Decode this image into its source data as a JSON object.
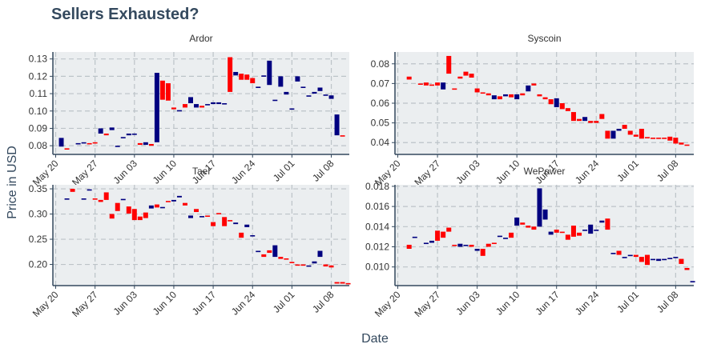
{
  "title": "Sellers Exhausted?",
  "xlabel": "Date",
  "ylabel": "Price in USD",
  "colors": {
    "up": "#000080",
    "down": "#ff0000",
    "panel_bg": "#ebeef0",
    "grid": "#bcc3c8",
    "axis": "#34495e"
  },
  "x_tick_labels": [
    "May 20",
    "May 27",
    "Jun 03",
    "Jun 10",
    "Jun 17",
    "Jun 24",
    "Jul 01",
    "Jul 08"
  ],
  "chart_data": [
    {
      "type": "candlestick",
      "name": "Ardor",
      "ylim": [
        0.075,
        0.134
      ],
      "y_ticks": [
        0.08,
        0.09,
        0.1,
        0.11,
        0.12,
        0.13
      ],
      "y_tick_labels": [
        "0.08",
        "0.09",
        "0.10",
        "0.11",
        "0.12",
        "0.13"
      ],
      "x_tick_days": [
        0,
        7,
        14,
        21,
        28,
        35,
        42,
        49
      ],
      "xlim": [
        -0.5,
        52.2
      ],
      "day": [
        1,
        2,
        4,
        5,
        6,
        7,
        8,
        9,
        10,
        11,
        12,
        13,
        14,
        15,
        16,
        17,
        18,
        19,
        20,
        21,
        22,
        23,
        24,
        25,
        26,
        27,
        28,
        29,
        30,
        31,
        32,
        33,
        34,
        35,
        36,
        37,
        38,
        39,
        40,
        41,
        42,
        43,
        44,
        45,
        46,
        47,
        48,
        49,
        50,
        51
      ],
      "open": [
        0.0795,
        0.0785,
        0.0815,
        0.0815,
        0.0815,
        0.082,
        0.087,
        0.087,
        0.089,
        0.0795,
        0.0845,
        0.086,
        0.087,
        0.0815,
        0.0805,
        0.081,
        0.082,
        0.1175,
        0.116,
        0.102,
        0.1,
        0.104,
        0.1045,
        0.102,
        0.103,
        0.1035,
        0.104,
        0.104,
        0.104,
        0.131,
        0.1205,
        0.1215,
        0.121,
        0.119,
        0.114,
        0.1205,
        0.115,
        0.1065,
        0.114,
        0.1095,
        0.101,
        0.117,
        0.114,
        0.109,
        0.11,
        0.1115,
        0.1095,
        0.107,
        0.086,
        0.086
      ],
      "close": [
        0.0845,
        0.078,
        0.0815,
        0.082,
        0.081,
        0.0815,
        0.09,
        0.086,
        0.0905,
        0.08,
        0.085,
        0.087,
        0.087,
        0.0805,
        0.082,
        0.08,
        0.122,
        0.1065,
        0.106,
        0.101,
        0.1005,
        0.102,
        0.108,
        0.104,
        0.102,
        0.104,
        0.105,
        0.105,
        0.1045,
        0.111,
        0.1225,
        0.118,
        0.118,
        0.116,
        0.114,
        0.1205,
        0.129,
        0.1065,
        0.12,
        0.111,
        0.1015,
        0.12,
        0.114,
        0.109,
        0.111,
        0.1135,
        0.1095,
        0.109,
        0.098,
        0.0855
      ]
    },
    {
      "type": "candlestick",
      "name": "Syscoin",
      "ylim": [
        0.034,
        0.086
      ],
      "y_ticks": [
        0.04,
        0.05,
        0.06,
        0.07,
        0.08
      ],
      "y_tick_labels": [
        "0.04",
        "0.05",
        "0.06",
        "0.07",
        "0.08"
      ],
      "x_tick_days": [
        0,
        7,
        14,
        21,
        28,
        35,
        42,
        49
      ],
      "xlim": [
        -0.5,
        52.2
      ],
      "day": [
        2,
        4,
        5,
        6,
        7,
        8,
        9,
        10,
        11,
        12,
        13,
        14,
        15,
        16,
        17,
        18,
        19,
        20,
        21,
        22,
        23,
        24,
        25,
        26,
        27,
        28,
        29,
        30,
        31,
        32,
        33,
        34,
        35,
        36,
        37,
        38,
        39,
        40,
        41,
        42,
        43,
        44,
        45,
        46,
        47,
        48,
        49,
        50,
        51
      ],
      "open": [
        0.0735,
        0.07,
        0.0705,
        0.0695,
        0.0705,
        0.067,
        0.084,
        0.0675,
        0.0735,
        0.076,
        0.075,
        0.0675,
        0.0655,
        0.065,
        0.062,
        0.0635,
        0.0635,
        0.0645,
        0.062,
        0.065,
        0.066,
        0.07,
        0.0645,
        0.063,
        0.062,
        0.058,
        0.06,
        0.0575,
        0.0555,
        0.052,
        0.051,
        0.051,
        0.051,
        0.0545,
        0.046,
        0.042,
        0.046,
        0.049,
        0.046,
        0.044,
        0.047,
        0.0428,
        0.0425,
        0.0425,
        0.0425,
        0.043,
        0.0425,
        0.04,
        0.039
      ],
      "close": [
        0.072,
        0.0695,
        0.069,
        0.069,
        0.069,
        0.0705,
        0.075,
        0.067,
        0.0725,
        0.074,
        0.073,
        0.0655,
        0.065,
        0.064,
        0.064,
        0.062,
        0.0645,
        0.063,
        0.0645,
        0.064,
        0.069,
        0.069,
        0.0635,
        0.062,
        0.0595,
        0.0625,
        0.057,
        0.056,
        0.051,
        0.051,
        0.053,
        0.05,
        0.05,
        0.052,
        0.042,
        0.046,
        0.047,
        0.047,
        0.044,
        0.043,
        0.042,
        0.0422,
        0.042,
        0.042,
        0.042,
        0.041,
        0.0395,
        0.039,
        0.0388
      ]
    },
    {
      "type": "candlestick",
      "name": "Tael",
      "ylim": [
        0.158,
        0.358
      ],
      "y_ticks": [
        0.2,
        0.25,
        0.3,
        0.35
      ],
      "y_tick_labels": [
        "0.20",
        "0.25",
        "0.30",
        "0.35"
      ],
      "x_tick_days": [
        0,
        7,
        14,
        21,
        28,
        35,
        42,
        49
      ],
      "xlim": [
        -0.5,
        52.2
      ],
      "day": [
        2,
        3,
        5,
        6,
        7,
        8,
        9,
        10,
        11,
        12,
        13,
        14,
        15,
        16,
        17,
        18,
        19,
        20,
        21,
        22,
        23,
        24,
        25,
        26,
        27,
        28,
        29,
        30,
        31,
        32,
        33,
        34,
        35,
        36,
        37,
        38,
        39,
        40,
        41,
        42,
        43,
        44,
        45,
        46,
        47,
        48,
        49,
        50,
        51,
        52
      ],
      "open": [
        0.33,
        0.35,
        0.33,
        0.347,
        0.331,
        0.328,
        0.343,
        0.3,
        0.322,
        0.329,
        0.315,
        0.31,
        0.295,
        0.303,
        0.311,
        0.319,
        0.312,
        0.326,
        0.325,
        0.333,
        0.322,
        0.292,
        0.31,
        0.295,
        0.297,
        0.284,
        0.302,
        0.294,
        0.288,
        0.28,
        0.263,
        0.274,
        0.258,
        0.225,
        0.22,
        0.228,
        0.215,
        0.215,
        0.212,
        0.205,
        0.2,
        0.2,
        0.197,
        0.202,
        0.215,
        0.2,
        0.198,
        0.165,
        0.165,
        0.163
      ],
      "close": [
        0.331,
        0.344,
        0.331,
        0.349,
        0.33,
        0.324,
        0.328,
        0.291,
        0.306,
        0.33,
        0.301,
        0.288,
        0.288,
        0.292,
        0.317,
        0.313,
        0.314,
        0.324,
        0.328,
        0.336,
        0.317,
        0.297,
        0.304,
        0.296,
        0.296,
        0.276,
        0.3,
        0.276,
        0.287,
        0.283,
        0.253,
        0.279,
        0.258,
        0.227,
        0.215,
        0.223,
        0.238,
        0.211,
        0.21,
        0.203,
        0.198,
        0.198,
        0.198,
        0.206,
        0.227,
        0.196,
        0.194,
        0.162,
        0.162,
        0.162
      ]
    },
    {
      "type": "candlestick",
      "name": "WePower",
      "ylim": [
        0.00815,
        0.01815
      ],
      "y_ticks": [
        0.01,
        0.012,
        0.014,
        0.016,
        0.018
      ],
      "y_tick_labels": [
        "0.010",
        "0.012",
        "0.014",
        "0.016",
        "0.018"
      ],
      "x_tick_days": [
        0,
        7,
        14,
        21,
        28,
        35,
        42,
        49
      ],
      "xlim": [
        -0.5,
        52.2
      ],
      "day": [
        2,
        3,
        5,
        6,
        7,
        8,
        9,
        10,
        11,
        12,
        13,
        14,
        15,
        16,
        17,
        18,
        19,
        20,
        21,
        22,
        23,
        24,
        25,
        26,
        27,
        28,
        29,
        30,
        31,
        32,
        33,
        34,
        35,
        36,
        37,
        38,
        39,
        40,
        41,
        42,
        43,
        44,
        45,
        46,
        47,
        48,
        49,
        50,
        51,
        52
      ],
      "open": [
        0.0122,
        0.013,
        0.0123,
        0.0124,
        0.0136,
        0.0135,
        0.0139,
        0.0122,
        0.012,
        0.0121,
        0.0122,
        0.0116,
        0.0118,
        0.0123,
        0.0124,
        0.0131,
        0.0129,
        0.0134,
        0.0141,
        0.0144,
        0.0141,
        0.014,
        0.014,
        0.0147,
        0.0132,
        0.0137,
        0.0135,
        0.0132,
        0.0141,
        0.0134,
        0.0136,
        0.0133,
        0.0137,
        0.0144,
        0.0148,
        0.0114,
        0.0116,
        0.0109,
        0.0111,
        0.0112,
        0.011,
        0.0112,
        0.0108,
        0.0106,
        0.0107,
        0.0108,
        0.011,
        0.0108,
        0.0099,
        0.0086
      ],
      "close": [
        0.0118,
        0.013,
        0.0124,
        0.0126,
        0.0126,
        0.0129,
        0.0135,
        0.0121,
        0.0123,
        0.0122,
        0.012,
        0.0118,
        0.0111,
        0.012,
        0.0123,
        0.0131,
        0.0129,
        0.0129,
        0.0149,
        0.0142,
        0.0139,
        0.0137,
        0.0178,
        0.0157,
        0.0135,
        0.0134,
        0.0134,
        0.0127,
        0.013,
        0.0131,
        0.0137,
        0.0142,
        0.0137,
        0.0146,
        0.0137,
        0.0114,
        0.0112,
        0.011,
        0.0112,
        0.011,
        0.0105,
        0.0102,
        0.0108,
        0.0108,
        0.0108,
        0.0109,
        0.011,
        0.0103,
        0.0097,
        0.0086
      ]
    }
  ]
}
